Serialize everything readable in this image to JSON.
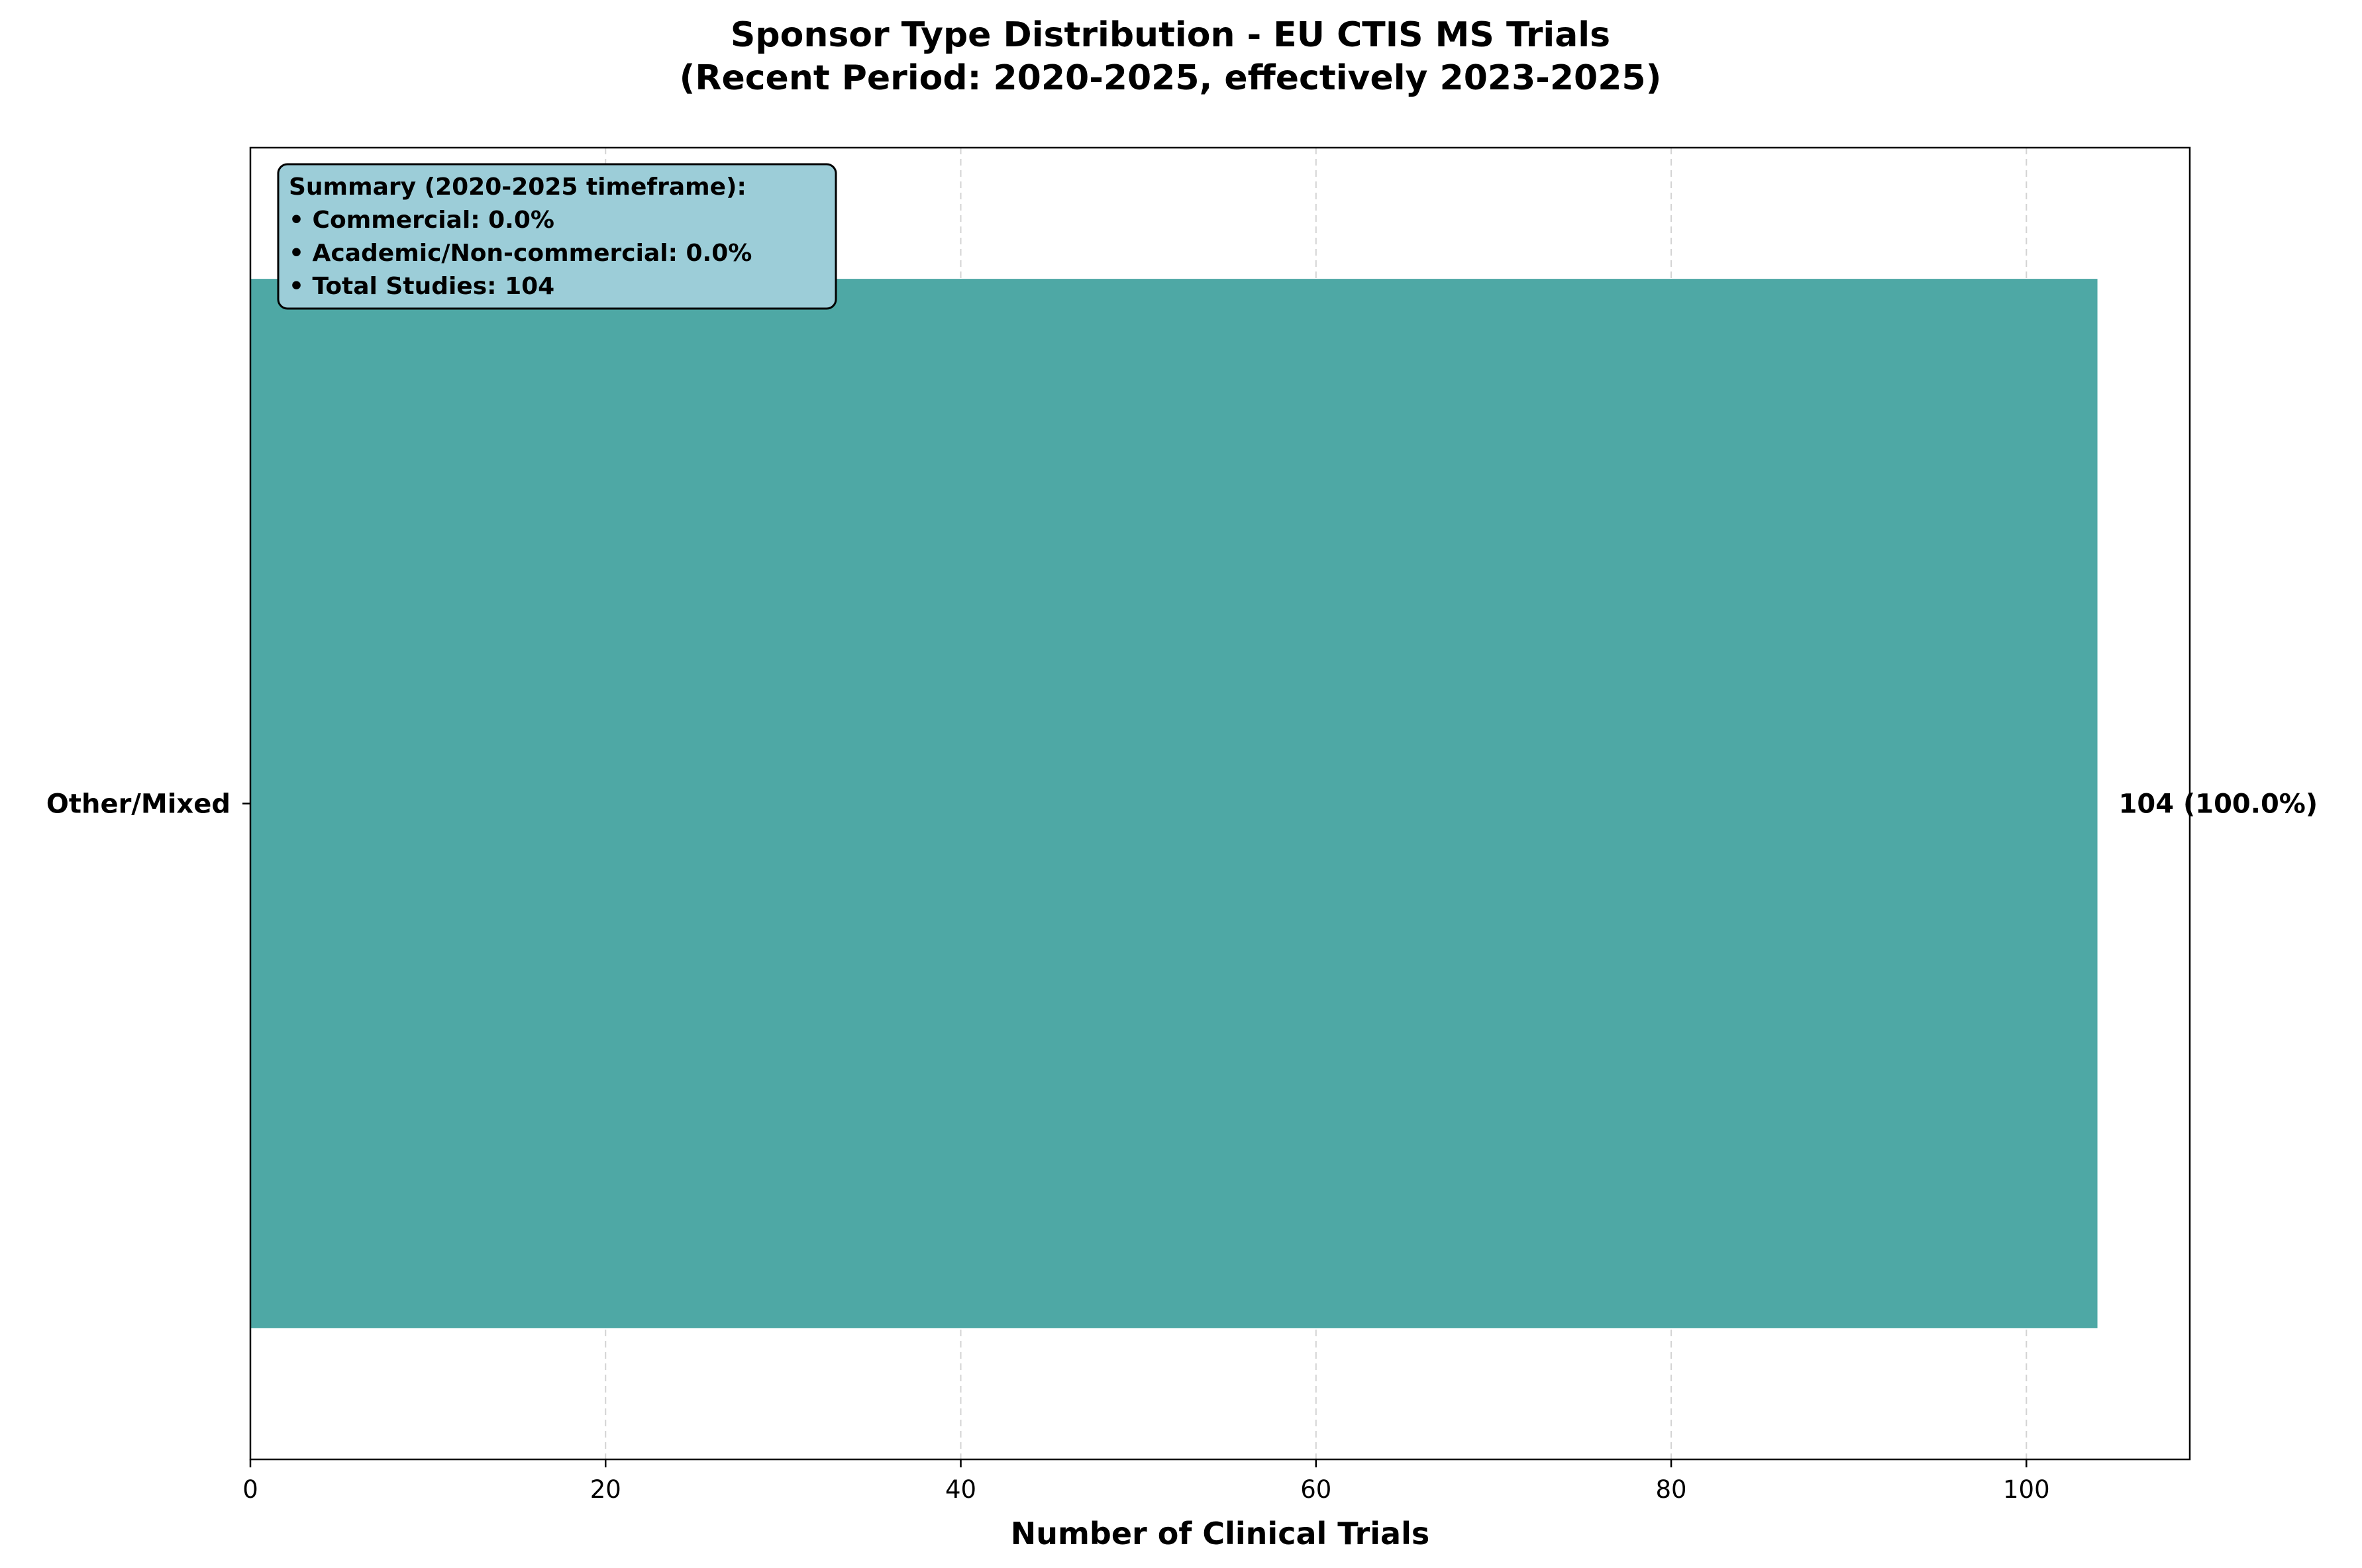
{
  "chart_data": {
    "type": "bar",
    "orientation": "horizontal",
    "title": "Sponsor Type Distribution - EU CTIS MS Trials",
    "subtitle": "(Recent Period: 2020-2025, effectively 2023-2025)",
    "xlabel": "Number of Clinical Trials",
    "ylabel": "",
    "categories": [
      "Other/Mixed"
    ],
    "values": [
      104
    ],
    "value_labels": [
      "104 (100.0%)"
    ],
    "xlim": [
      0,
      109.2
    ],
    "xticks": [
      0,
      20,
      40,
      60,
      80,
      100
    ],
    "grid": true,
    "grid_axis": "x",
    "colors": {
      "bar": "#4ea8a5",
      "summary_box": "#9ccdd8"
    },
    "annotation": {
      "placement": "top-left",
      "lines": [
        "Summary (2020-2025 timeframe):",
        "• Commercial: 0.0%",
        "• Academic/Non-commercial: 0.0%",
        "• Total Studies: 104"
      ]
    }
  }
}
